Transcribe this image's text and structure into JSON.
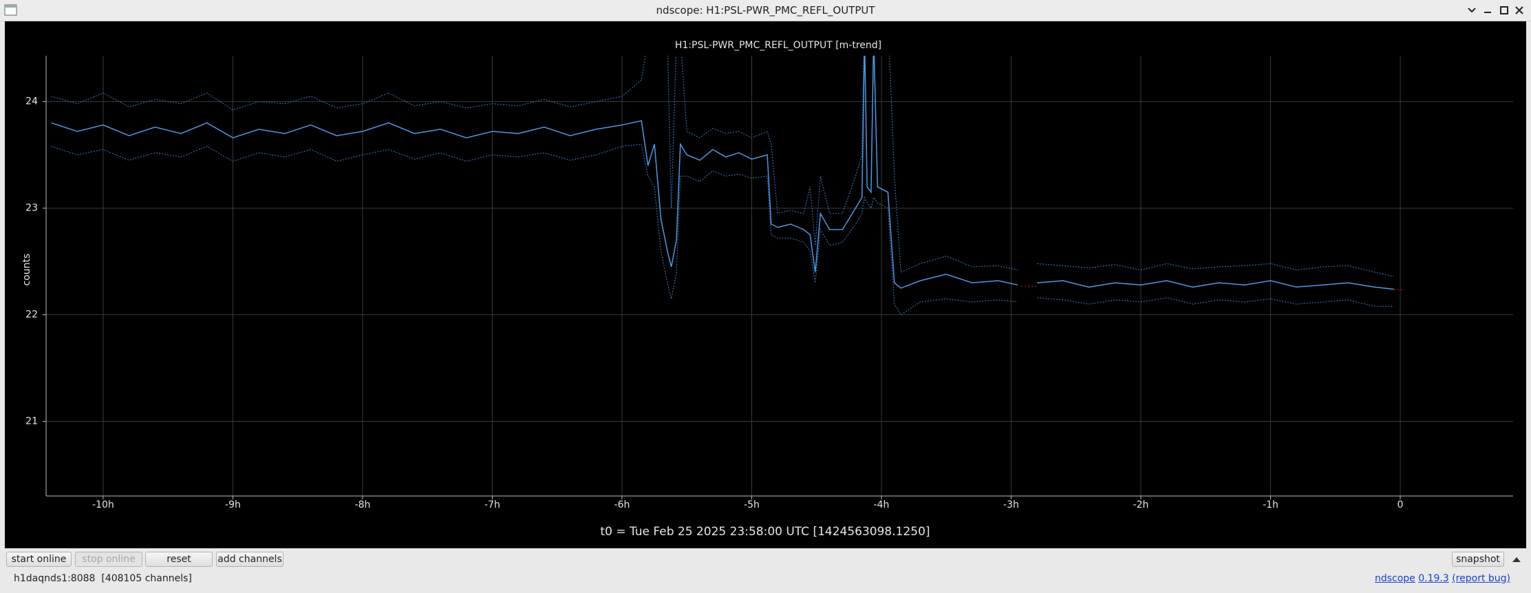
{
  "window": {
    "title": "ndscope: H1:PSL-PWR_PMC_REFL_OUTPUT"
  },
  "chart_data": {
    "type": "line",
    "title": "H1:PSL-PWR_PMC_REFL_OUTPUT [m-trend]",
    "y_label": "counts",
    "x_label": "t0 = Tue Feb 25 2025 23:58:00 UTC [1424563098.1250]",
    "xlim": [
      -10.44,
      0.87
    ],
    "ylim": [
      20.3,
      24.43
    ],
    "xticks": [
      {
        "value": -10,
        "label": "-10h"
      },
      {
        "value": -9,
        "label": "-9h"
      },
      {
        "value": -8,
        "label": "-8h"
      },
      {
        "value": -7,
        "label": "-7h"
      },
      {
        "value": -6,
        "label": "-6h"
      },
      {
        "value": -5,
        "label": "-5h"
      },
      {
        "value": -4,
        "label": "-4h"
      },
      {
        "value": -3,
        "label": "-3h"
      },
      {
        "value": -2,
        "label": "-2h"
      },
      {
        "value": -1,
        "label": "-1h"
      },
      0
    ],
    "yticks": [
      21,
      22,
      23,
      24
    ],
    "grid": true,
    "x": [
      -10.4,
      -10.2,
      -10,
      -9.8,
      -9.6,
      -9.4,
      -9.2,
      -9,
      -8.8,
      -8.6,
      -8.4,
      -8.2,
      -8,
      -7.8,
      -7.6,
      -7.4,
      -7.2,
      -7,
      -6.8,
      -6.6,
      -6.4,
      -6.2,
      -6,
      -5.85,
      -5.8,
      -5.75,
      -5.7,
      -5.65,
      -5.62,
      -5.58,
      -5.55,
      -5.5,
      -5.4,
      -5.3,
      -5.2,
      -5.1,
      -5,
      -4.88,
      -4.85,
      -4.8,
      -4.7,
      -4.6,
      -4.55,
      -4.51,
      -4.47,
      -4.4,
      -4.3,
      -4.2,
      -4.15,
      -4.13,
      -4.11,
      -4.08,
      -4.06,
      -4.03,
      -3.95,
      -3.9,
      -3.85,
      -3.7,
      -3.5,
      -3.3,
      -3.1,
      -2.95,
      -2.9,
      -2.8,
      -2.6,
      -2.4,
      -2.2,
      -2,
      -1.8,
      -1.6,
      -1.4,
      -1.2,
      -1,
      -0.8,
      -0.6,
      -0.4,
      -0.2,
      -0.05
    ],
    "series": [
      {
        "color": "#2f6eaa",
        "style": "dotted",
        "values": [
          24.05,
          23.98,
          24.08,
          23.95,
          24.02,
          23.98,
          24.08,
          23.92,
          24.0,
          23.98,
          24.05,
          23.94,
          23.98,
          24.08,
          23.96,
          24.0,
          23.94,
          23.98,
          23.96,
          24.02,
          23.95,
          24.0,
          24.05,
          24.2,
          24.6,
          24.6,
          24.5,
          24.6,
          23.0,
          24.6,
          24.6,
          23.72,
          23.66,
          23.75,
          23.7,
          23.72,
          23.66,
          23.72,
          23.6,
          22.95,
          22.98,
          22.95,
          23.2,
          22.65,
          23.3,
          22.95,
          22.95,
          23.3,
          23.5,
          24.8,
          24.8,
          24.8,
          24.8,
          24.8,
          24.8,
          23.3,
          22.4,
          22.48,
          22.55,
          22.45,
          22.46,
          22.42,
          null,
          22.48,
          22.46,
          22.44,
          22.47,
          22.42,
          22.48,
          22.43,
          22.45,
          22.46,
          22.48,
          22.42,
          22.45,
          22.46,
          22.4,
          22.36
        ]
      },
      {
        "color": "#2f6eaa",
        "style": "dotted",
        "values": [
          23.58,
          23.5,
          23.55,
          23.45,
          23.52,
          23.48,
          23.58,
          23.44,
          23.52,
          23.48,
          23.55,
          23.44,
          23.5,
          23.55,
          23.46,
          23.52,
          23.44,
          23.5,
          23.48,
          23.52,
          23.45,
          23.5,
          23.58,
          23.6,
          23.3,
          23.2,
          22.6,
          22.3,
          22.15,
          22.4,
          23.3,
          23.3,
          23.25,
          23.35,
          23.3,
          23.32,
          23.28,
          23.3,
          22.75,
          22.72,
          22.72,
          22.68,
          22.6,
          22.3,
          22.8,
          22.65,
          22.68,
          22.85,
          22.95,
          23.1,
          23.05,
          23.0,
          23.1,
          23.05,
          23.0,
          22.1,
          22.0,
          22.12,
          22.15,
          22.12,
          22.14,
          22.12,
          null,
          22.16,
          22.14,
          22.1,
          22.14,
          22.12,
          22.16,
          22.1,
          22.14,
          22.12,
          22.15,
          22.1,
          22.12,
          22.14,
          22.08,
          22.08
        ]
      },
      {
        "color": "#4a9be6",
        "style": "solid",
        "values": [
          23.8,
          23.72,
          23.78,
          23.68,
          23.76,
          23.7,
          23.8,
          23.66,
          23.74,
          23.7,
          23.78,
          23.68,
          23.72,
          23.8,
          23.7,
          23.74,
          23.66,
          23.72,
          23.7,
          23.76,
          23.68,
          23.74,
          23.78,
          23.82,
          23.4,
          23.6,
          22.9,
          22.6,
          22.45,
          22.7,
          23.6,
          23.5,
          23.45,
          23.55,
          23.48,
          23.52,
          23.46,
          23.5,
          22.85,
          22.82,
          22.85,
          22.8,
          22.75,
          22.4,
          22.95,
          22.8,
          22.8,
          23.0,
          23.1,
          24.6,
          23.2,
          23.15,
          24.6,
          23.2,
          23.15,
          22.3,
          22.25,
          22.32,
          22.38,
          22.3,
          22.32,
          22.28,
          null,
          22.3,
          22.32,
          22.26,
          22.3,
          22.28,
          22.32,
          22.26,
          22.3,
          22.28,
          22.32,
          22.26,
          22.28,
          22.3,
          22.26,
          22.24
        ]
      }
    ]
  },
  "toolbar": {
    "buttons": [
      "start online",
      "stop online",
      "reset",
      "add channels"
    ],
    "snapshot": "snapshot"
  },
  "status": {
    "server": "h1daqnds1:8088  [408105 channels]",
    "app": "ndscope",
    "version": "0.19.3",
    "report": "(report bug)"
  }
}
